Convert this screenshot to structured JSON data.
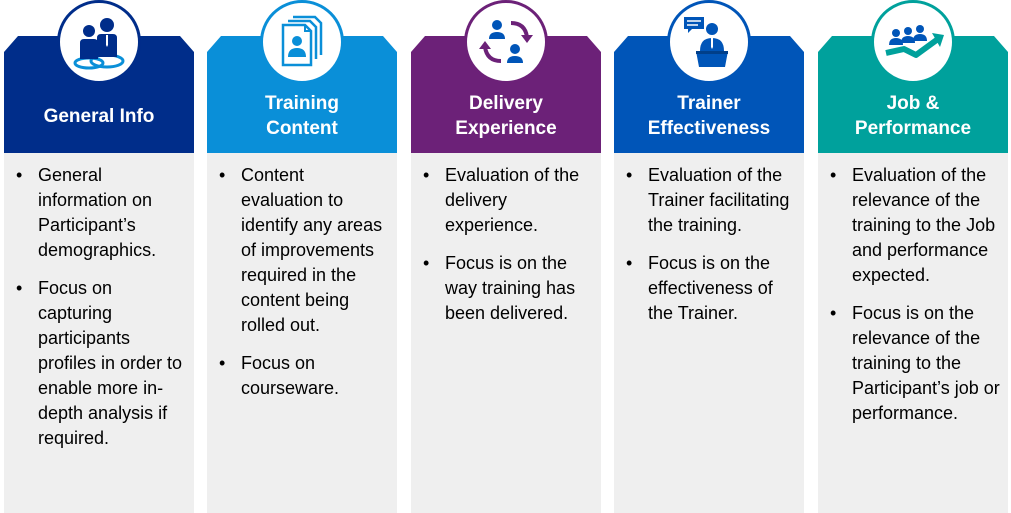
{
  "columns": [
    {
      "title": "General Info",
      "color": "#002d8a",
      "icon": "group-people-icon",
      "bullets": [
        "General information on Participant’s demographics.",
        "Focus on capturing participants profiles in order to enable more in-depth analysis if required."
      ]
    },
    {
      "title": "Training\nContent",
      "color": "#0a8fd8",
      "icon": "profile-documents-icon",
      "bullets": [
        "Content evaluation to identify any areas of improvements required in the content being rolled out.",
        "Focus on courseware."
      ]
    },
    {
      "title": "Delivery\nExperience",
      "color": "#6c2178",
      "icon": "people-exchange-icon",
      "bullets": [
        "Evaluation of the delivery experience.",
        "Focus is on the way training has been delivered."
      ]
    },
    {
      "title": "Trainer\nEffectiveness",
      "color": "#0055b8",
      "icon": "speaker-podium-icon",
      "bullets": [
        "Evaluation of the Trainer facilitating the training.",
        "Focus is on the effectiveness of the Trainer."
      ]
    },
    {
      "title": "Job &\nPerformance",
      "color": "#00a19c",
      "icon": "team-growth-icon",
      "bullets": [
        "Evaluation of the relevance of the training to the Job and performance expected.",
        "Focus is on the relevance of the training to the Participant’s job or performance."
      ]
    }
  ]
}
